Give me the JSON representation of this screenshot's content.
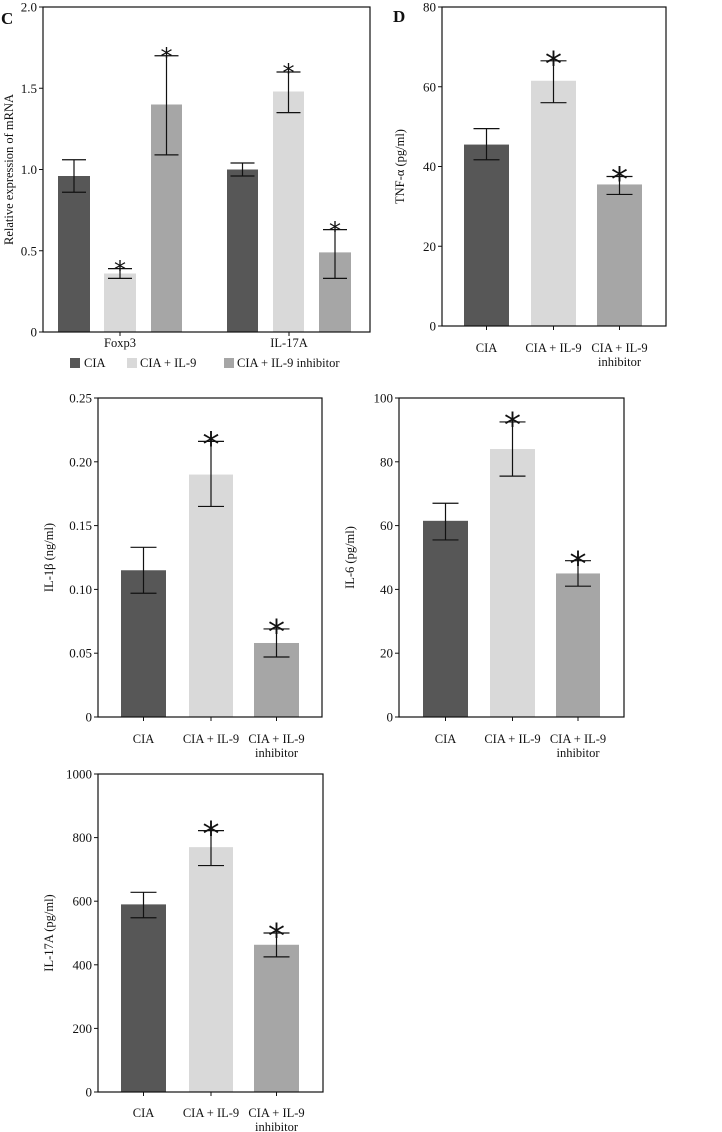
{
  "chart_data": [
    {
      "type": "bar",
      "panel_label": "C",
      "ylabel": "Relative expression of mRNA",
      "ylim": [
        0,
        2.0
      ],
      "yticks": [
        "0",
        "0.5",
        "1.0",
        "1.5",
        "2.0"
      ],
      "ytick_values": [
        0,
        0.5,
        1.0,
        1.5,
        2.0
      ],
      "categories": [
        "Foxp3",
        "IL-17A"
      ],
      "legend": {
        "placement": "bottom",
        "entries": [
          "CIA",
          "CIA + IL-9",
          "CIA + IL-9 inhibitor"
        ]
      },
      "series": [
        {
          "name": "CIA",
          "color": "#575757",
          "values": [
            0.96,
            1.0
          ],
          "err_low": [
            0.86,
            0.96
          ],
          "err_high": [
            1.06,
            1.04
          ],
          "significant": [
            false,
            false
          ]
        },
        {
          "name": "CIA + IL-9",
          "color": "#d9d9d9",
          "values": [
            0.36,
            1.48
          ],
          "err_low": [
            0.33,
            1.35
          ],
          "err_high": [
            0.39,
            1.6
          ],
          "significant": [
            true,
            true
          ]
        },
        {
          "name": "CIA + IL-9 inhibitor",
          "color": "#a6a6a6",
          "values": [
            1.4,
            0.49
          ],
          "err_low": [
            1.09,
            0.33
          ],
          "err_high": [
            1.7,
            0.63
          ],
          "significant": [
            true,
            true
          ]
        }
      ],
      "significance_marker": "*"
    },
    {
      "type": "bar",
      "panel_label": "D",
      "ylabel": "TNF-α (pg/ml)",
      "ylim": [
        0,
        80
      ],
      "yticks": [
        "0",
        "20",
        "40",
        "60",
        "80"
      ],
      "ytick_values": [
        0,
        20,
        40,
        60,
        80
      ],
      "categories": [
        [
          "CIA"
        ],
        [
          "CIA + IL-9"
        ],
        [
          "CIA + IL-9",
          "inhibitor"
        ]
      ],
      "colors": [
        "#575757",
        "#d9d9d9",
        "#a6a6a6"
      ],
      "values": [
        45.5,
        61.5,
        35.5
      ],
      "err_low": [
        41.7,
        56.0,
        33.0
      ],
      "err_high": [
        49.5,
        66.5,
        37.5
      ],
      "significant": [
        false,
        true,
        true
      ],
      "significance_marker": "*"
    },
    {
      "type": "bar",
      "panel_label": "",
      "ylabel": "IL-1β (ng/ml)",
      "ylim": [
        0,
        0.25
      ],
      "yticks": [
        "0",
        "0.05",
        "0.10",
        "0.15",
        "0.20",
        "0.25"
      ],
      "ytick_values": [
        0,
        0.05,
        0.1,
        0.15,
        0.2,
        0.25
      ],
      "categories": [
        [
          "CIA"
        ],
        [
          "CIA + IL-9"
        ],
        [
          "CIA + IL-9",
          "inhibitor"
        ]
      ],
      "colors": [
        "#575757",
        "#d9d9d9",
        "#a6a6a6"
      ],
      "values": [
        0.115,
        0.19,
        0.058
      ],
      "err_low": [
        0.097,
        0.165,
        0.047
      ],
      "err_high": [
        0.133,
        0.216,
        0.069
      ],
      "significant": [
        false,
        true,
        true
      ],
      "significance_marker": "*"
    },
    {
      "type": "bar",
      "panel_label": "",
      "ylabel": "IL-6 (pg/ml)",
      "ylim": [
        0,
        100
      ],
      "yticks": [
        "0",
        "20",
        "40",
        "60",
        "80",
        "100"
      ],
      "ytick_values": [
        0,
        20,
        40,
        60,
        80,
        100
      ],
      "categories": [
        [
          "CIA"
        ],
        [
          "CIA + IL-9"
        ],
        [
          "CIA + IL-9",
          "inhibitor"
        ]
      ],
      "colors": [
        "#575757",
        "#d9d9d9",
        "#a6a6a6"
      ],
      "values": [
        61.5,
        84.0,
        45.0
      ],
      "err_low": [
        55.5,
        75.5,
        41.0
      ],
      "err_high": [
        67.0,
        92.5,
        49.0
      ],
      "significant": [
        false,
        true,
        true
      ],
      "significance_marker": "*"
    },
    {
      "type": "bar",
      "panel_label": "",
      "ylabel": "IL-17A (pg/ml)",
      "ylim": [
        0,
        1000
      ],
      "yticks": [
        "0",
        "200",
        "400",
        "600",
        "800",
        "1000"
      ],
      "ytick_values": [
        0,
        200,
        400,
        600,
        800,
        1000
      ],
      "categories": [
        [
          "CIA"
        ],
        [
          "CIA + IL-9"
        ],
        [
          "CIA + IL-9",
          "inhibitor"
        ]
      ],
      "colors": [
        "#575757",
        "#d9d9d9",
        "#a6a6a6"
      ],
      "values": [
        590,
        770,
        463
      ],
      "err_low": [
        548,
        712,
        425
      ],
      "err_high": [
        628,
        822,
        500
      ],
      "significant": [
        false,
        true,
        true
      ],
      "significance_marker": "*"
    }
  ]
}
